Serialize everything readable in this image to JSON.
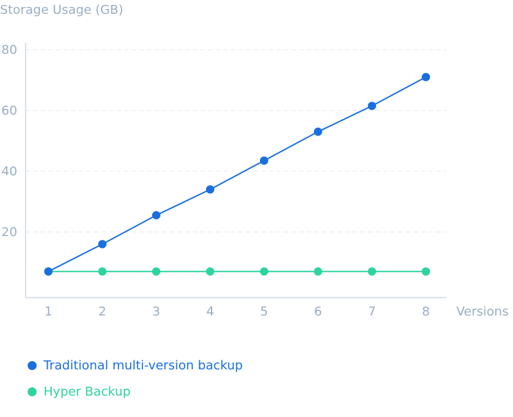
{
  "chart_data": {
    "type": "line",
    "title": "Storage Usage (GB)",
    "xlabel": "Versions",
    "ylabel": "Storage Usage (GB)",
    "x": [
      1,
      2,
      3,
      4,
      5,
      6,
      7,
      8
    ],
    "x_tick_labels": [
      "1",
      "2",
      "3",
      "4",
      "5",
      "6",
      "7",
      "8"
    ],
    "ylim": [
      0,
      80
    ],
    "y_ticks": [
      20,
      40,
      60,
      80
    ],
    "y_tick_labels": [
      "20",
      "40",
      "60",
      "80"
    ],
    "grid": "horizontal dashed",
    "legend_position": "bottom-left",
    "series": [
      {
        "name": "Traditional multi-version backup",
        "color": "#1a6fe0",
        "values": [
          7,
          16,
          25.5,
          34,
          43.5,
          53,
          61.5,
          71
        ]
      },
      {
        "name": "Hyper Backup",
        "color": "#2fd3a0",
        "values": [
          7,
          7,
          7,
          7,
          7,
          7,
          7,
          7
        ]
      }
    ]
  },
  "colors": {
    "axis_text": "#9aaec3",
    "axis_line": "#c5d3e0",
    "grid": "#e3e9ef"
  }
}
